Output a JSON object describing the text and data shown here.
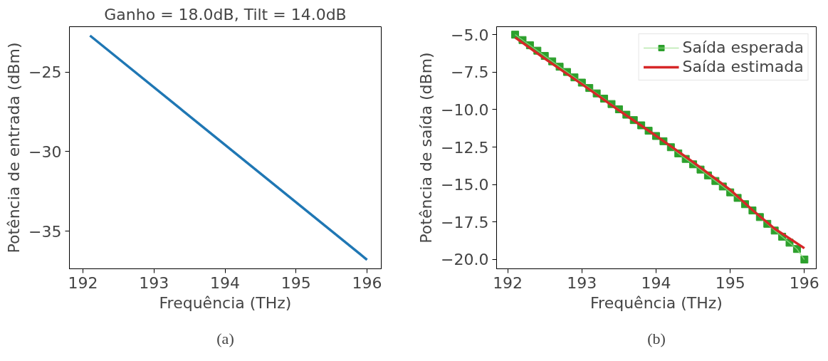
{
  "chart_data": [
    {
      "type": "line",
      "title": "Ganho = 18.0dB, Tilt = 14.0dB",
      "xlabel": "Frequência (THz)",
      "ylabel": "Potência de entrada (dBm)",
      "annotations": [
        "(a)"
      ],
      "xlim": [
        191.81,
        196.2
      ],
      "ylim": [
        -37.37,
        -22.14
      ],
      "xticks": [
        192,
        193,
        194,
        195,
        196
      ],
      "yticks": [
        {
          "value": -25,
          "label": "−25"
        },
        {
          "value": -30,
          "label": "−30"
        },
        {
          "value": -35,
          "label": "−35"
        }
      ],
      "grid": false,
      "legend": false,
      "line_style": "solid",
      "series": [
        {
          "color": "#1f77b4",
          "x": [
            192.1,
            196.0
          ],
          "values": [
            -22.7,
            -36.8
          ]
        }
      ]
    },
    {
      "type": "line",
      "xlabel": "Frequência (THz)",
      "ylabel": "Potência de saída (dBm)",
      "annotations": [
        "(b)"
      ],
      "xlim": [
        191.85,
        196.16
      ],
      "ylim": [
        -20.62,
        -4.47
      ],
      "xticks": [
        192,
        193,
        194,
        195,
        196
      ],
      "yticks": [
        {
          "value": -5,
          "label": "−5.0"
        },
        {
          "value": -7.5,
          "label": "−7.5"
        },
        {
          "value": -10,
          "label": "−10.0"
        },
        {
          "value": -12.5,
          "label": "−12.5"
        },
        {
          "value": -15,
          "label": "−15.0"
        },
        {
          "value": -17.5,
          "label": "−17.5"
        },
        {
          "value": -20,
          "label": "−20.0"
        }
      ],
      "grid": false,
      "legend": "top right",
      "line_style": "solid",
      "series": [
        {
          "name": "Saída esperada",
          "color": "#2ca02c",
          "marker": "square",
          "x": [
            192.1,
            192.2,
            192.3,
            192.4,
            192.5,
            192.6,
            192.7,
            192.8,
            192.9,
            193.0,
            193.1,
            193.2,
            193.3,
            193.4,
            193.5,
            193.6,
            193.7,
            193.8,
            193.9,
            194.0,
            194.1,
            194.2,
            194.3,
            194.4,
            194.5,
            194.6,
            194.7,
            194.8,
            194.9,
            195.0,
            195.1,
            195.2,
            195.3,
            195.4,
            195.5,
            195.6,
            195.7,
            195.8,
            195.9,
            196.0
          ],
          "values": [
            -5.0,
            -5.36,
            -5.71,
            -6.07,
            -6.42,
            -6.78,
            -7.14,
            -7.49,
            -7.85,
            -8.2,
            -8.56,
            -8.92,
            -9.27,
            -9.63,
            -9.98,
            -10.34,
            -10.7,
            -11.05,
            -11.41,
            -11.76,
            -12.11,
            -12.51,
            -12.92,
            -13.29,
            -13.65,
            -14.0,
            -14.39,
            -14.76,
            -15.13,
            -15.52,
            -15.89,
            -16.31,
            -16.73,
            -17.17,
            -17.62,
            -18.07,
            -18.48,
            -18.88,
            -19.3,
            -20.0
          ]
        },
        {
          "name": "Saída estimada",
          "color": "#d62728",
          "marker": "none",
          "x": [
            192.1,
            192.5,
            193.0,
            193.5,
            194.0,
            194.5,
            195.0,
            195.3,
            195.6,
            196.0
          ],
          "values": [
            -5.19,
            -6.6,
            -8.3,
            -10.05,
            -11.75,
            -13.5,
            -15.35,
            -16.7,
            -17.95,
            -19.25
          ]
        }
      ]
    }
  ]
}
